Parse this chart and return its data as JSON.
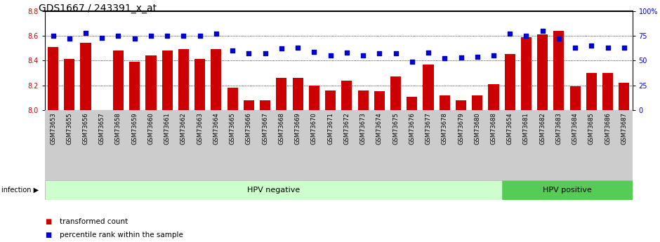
{
  "title": "GDS1667 / 243391_x_at",
  "samples": [
    "GSM73653",
    "GSM73655",
    "GSM73656",
    "GSM73657",
    "GSM73658",
    "GSM73659",
    "GSM73660",
    "GSM73661",
    "GSM73662",
    "GSM73663",
    "GSM73664",
    "GSM73665",
    "GSM73666",
    "GSM73667",
    "GSM73668",
    "GSM73669",
    "GSM73670",
    "GSM73671",
    "GSM73672",
    "GSM73673",
    "GSM73674",
    "GSM73675",
    "GSM73676",
    "GSM73677",
    "GSM73678",
    "GSM73679",
    "GSM73680",
    "GSM73688",
    "GSM73654",
    "GSM73681",
    "GSM73682",
    "GSM73683",
    "GSM73684",
    "GSM73685",
    "GSM73686",
    "GSM73687"
  ],
  "bar_values": [
    8.51,
    8.41,
    8.54,
    8.0,
    8.48,
    8.39,
    8.44,
    8.48,
    8.49,
    8.41,
    8.49,
    8.18,
    8.08,
    8.08,
    8.26,
    8.26,
    8.2,
    8.16,
    8.24,
    8.16,
    8.15,
    8.27,
    8.11,
    8.37,
    8.12,
    8.08,
    8.12,
    8.21,
    8.45,
    8.59,
    8.61,
    8.64,
    8.19,
    8.3,
    8.3,
    8.22
  ],
  "percentile_values": [
    75,
    72,
    78,
    73,
    75,
    72,
    75,
    75,
    75,
    75,
    77,
    60,
    57,
    57,
    62,
    63,
    59,
    55,
    58,
    55,
    57,
    57,
    49,
    58,
    52,
    53,
    54,
    55,
    77,
    75,
    80,
    72,
    63,
    65,
    63,
    63
  ],
  "hpv_negative_count": 28,
  "ylim_left": [
    8.0,
    8.8
  ],
  "ylim_right": [
    0,
    100
  ],
  "yticks_left": [
    8.0,
    8.2,
    8.4,
    8.6,
    8.8
  ],
  "yticks_right": [
    0,
    25,
    50,
    75,
    100
  ],
  "bar_color": "#cc0000",
  "dot_color": "#0000cc",
  "hpv_neg_color": "#ccffcc",
  "hpv_pos_color": "#55cc55",
  "xtick_bg_color": "#cccccc",
  "grid_lines_at": [
    8.2,
    8.4,
    8.6
  ],
  "infection_label": "infection",
  "hpv_neg_label": "HPV negative",
  "hpv_pos_label": "HPV positive",
  "legend_bar_label": "transformed count",
  "legend_dot_label": "percentile rank within the sample",
  "title_fontsize": 10,
  "tick_fontsize": 6,
  "annotation_fontsize": 8
}
